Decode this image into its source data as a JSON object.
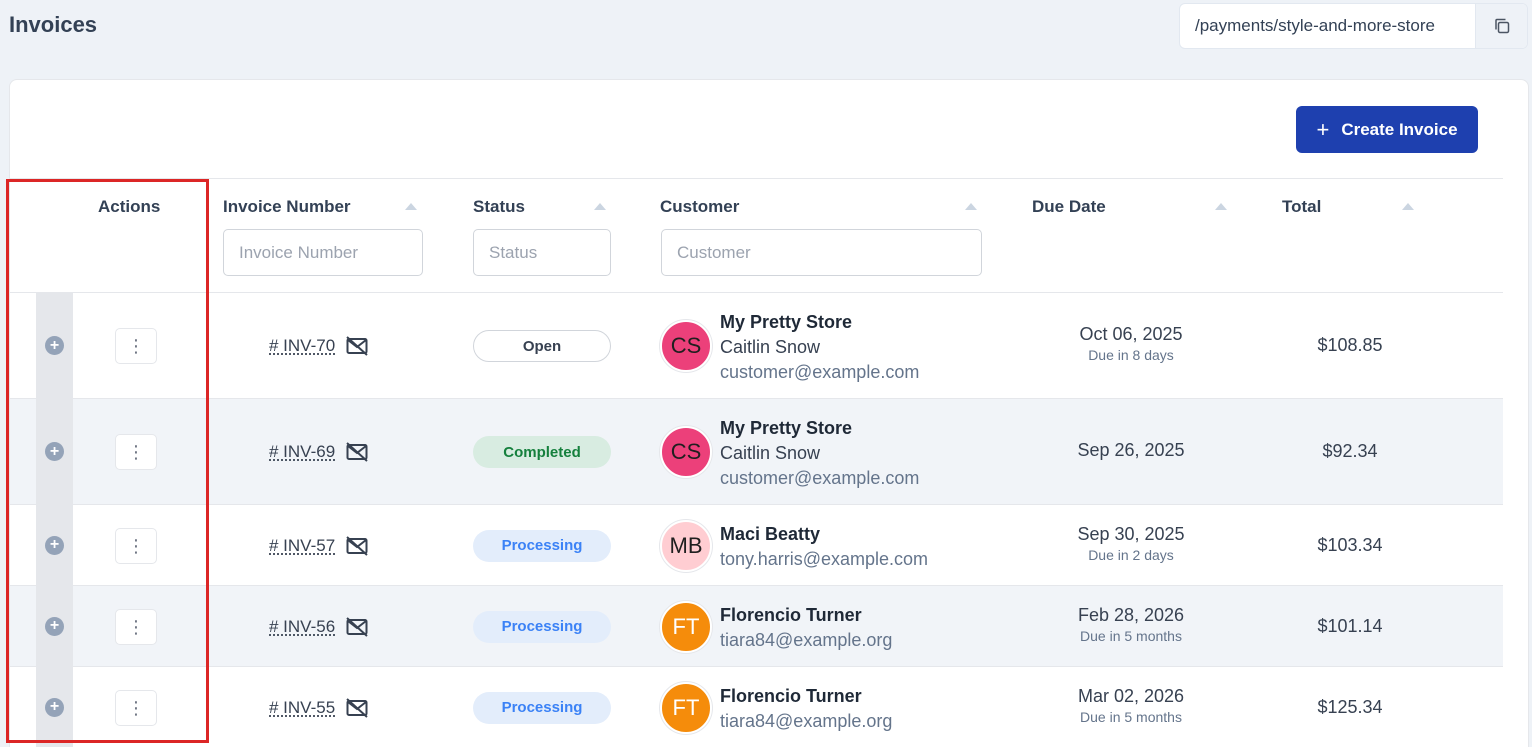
{
  "page": {
    "title": "Invoices"
  },
  "url_box": {
    "path": "/payments/style-and-more-store",
    "copy_icon": "copy-icon"
  },
  "toolbar": {
    "create_label": "Create Invoice",
    "create_icon": "plus"
  },
  "table": {
    "columns": {
      "actions": "Actions",
      "invoice_number": "Invoice Number",
      "status": "Status",
      "customer": "Customer",
      "due_date": "Due Date",
      "total": "Total"
    },
    "filters": {
      "invoice_number": "Invoice Number",
      "status": "Status",
      "customer": "Customer"
    },
    "rows": [
      {
        "invoice": "# INV-70",
        "status": "Open",
        "status_kind": "open",
        "initials": "CS",
        "avatar_color": "#ec407a",
        "avatar_text_color": "#1f1f1f",
        "store": "My Pretty Store",
        "name": "Caitlin Snow",
        "email": "customer@example.com",
        "due_date": "Oct 06, 2025",
        "due_rel": "Due in 8 days",
        "total": "$108.85"
      },
      {
        "invoice": "# INV-69",
        "status": "Completed",
        "status_kind": "completed",
        "initials": "CS",
        "avatar_color": "#ec407a",
        "avatar_text_color": "#1f1f1f",
        "store": "My Pretty Store",
        "name": "Caitlin Snow",
        "email": "customer@example.com",
        "due_date": "Sep 26, 2025",
        "due_rel": "",
        "total": "$92.34"
      },
      {
        "invoice": "# INV-57",
        "status": "Processing",
        "status_kind": "processing",
        "initials": "MB",
        "avatar_color": "#ffcdd2",
        "avatar_text_color": "#1f1f1f",
        "store": "Maci Beatty",
        "name": "",
        "email": "tony.harris@example.com",
        "due_date": "Sep 30, 2025",
        "due_rel": "Due in 2 days",
        "total": "$103.34"
      },
      {
        "invoice": "# INV-56",
        "status": "Processing",
        "status_kind": "processing",
        "initials": "FT",
        "avatar_color": "#f58c0b",
        "avatar_text_color": "#ffffff",
        "store": "Florencio Turner",
        "name": "",
        "email": "tiara84@example.org",
        "due_date": "Feb 28, 2026",
        "due_rel": "Due in 5 months",
        "total": "$101.14"
      },
      {
        "invoice": "# INV-55",
        "status": "Processing",
        "status_kind": "processing",
        "initials": "FT",
        "avatar_color": "#f58c0b",
        "avatar_text_color": "#ffffff",
        "store": "Florencio Turner",
        "name": "",
        "email": "tiara84@example.org",
        "due_date": "Mar 02, 2026",
        "due_rel": "Due in 5 months",
        "total": "$125.34"
      }
    ]
  },
  "colors": {
    "primary": "#1e40af",
    "highlight": "#dc2626"
  }
}
